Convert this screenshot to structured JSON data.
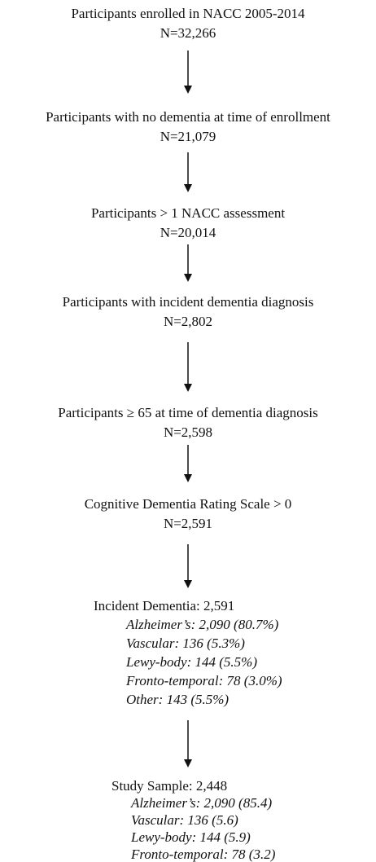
{
  "nodes": [
    {
      "label": "Participants enrolled in NACC 2005-2014",
      "n": "N=32,266"
    },
    {
      "label": "Participants with no dementia at time of enrollment",
      "n": "N=21,079"
    },
    {
      "label": "Participants > 1 NACC assessment",
      "n": "N=20,014"
    },
    {
      "label": "Participants with incident dementia diagnosis",
      "n": "N=2,802"
    },
    {
      "label": "Participants ≥ 65 at time of dementia diagnosis",
      "n": "N=2,598"
    },
    {
      "label": "Cognitive Dementia Rating Scale > 0",
      "n": "N=2,591"
    }
  ],
  "incident": {
    "title": "Incident Dementia: 2,591",
    "items": [
      "Alzheimer’s: 2,090 (80.7%)",
      "Vascular: 136 (5.3%)",
      "Lewy-body: 144 (5.5%)",
      "Fronto-temporal: 78 (3.0%)",
      "Other: 143 (5.5%)"
    ]
  },
  "study_sample": {
    "title": "Study Sample: 2,448",
    "items": [
      "Alzheimer’s: 2,090 (85.4)",
      "Vascular: 136 (5.6)",
      "Lewy-body: 144 (5.9)",
      "Fronto-temporal: 78 (3.2)"
    ]
  }
}
